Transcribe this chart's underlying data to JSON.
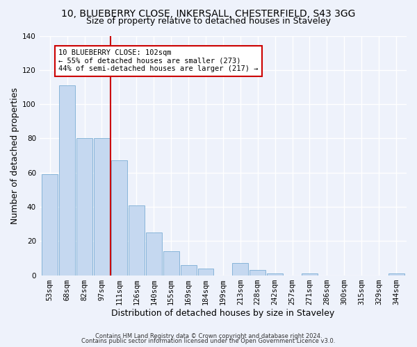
{
  "title1": "10, BLUEBERRY CLOSE, INKERSALL, CHESTERFIELD, S43 3GG",
  "title2": "Size of property relative to detached houses in Staveley",
  "xlabel": "Distribution of detached houses by size in Staveley",
  "ylabel": "Number of detached properties",
  "categories": [
    "53sqm",
    "68sqm",
    "82sqm",
    "97sqm",
    "111sqm",
    "126sqm",
    "140sqm",
    "155sqm",
    "169sqm",
    "184sqm",
    "199sqm",
    "213sqm",
    "228sqm",
    "242sqm",
    "257sqm",
    "271sqm",
    "286sqm",
    "300sqm",
    "315sqm",
    "329sqm",
    "344sqm"
  ],
  "values": [
    59,
    111,
    80,
    80,
    67,
    41,
    25,
    14,
    6,
    4,
    0,
    7,
    3,
    1,
    0,
    1,
    0,
    0,
    0,
    0,
    1
  ],
  "bar_color": "#c5d8f0",
  "bar_edge_color": "#7aadd4",
  "vline_x": 3.5,
  "vline_color": "#cc0000",
  "annotation_text": "10 BLUEBERRY CLOSE: 102sqm\n← 55% of detached houses are smaller (273)\n44% of semi-detached houses are larger (217) →",
  "annotation_box_facecolor": "#ffffff",
  "annotation_box_edgecolor": "#cc0000",
  "ylim": [
    0,
    140
  ],
  "yticks": [
    0,
    20,
    40,
    60,
    80,
    100,
    120,
    140
  ],
  "footnote1": "Contains HM Land Registry data © Crown copyright and database right 2024.",
  "footnote2": "Contains public sector information licensed under the Open Government Licence v3.0.",
  "bg_color": "#eef2fb",
  "grid_color": "#ffffff",
  "title1_fontsize": 10,
  "title2_fontsize": 9,
  "xlabel_fontsize": 9,
  "ylabel_fontsize": 9,
  "tick_fontsize": 7.5,
  "annot_fontsize": 7.5,
  "footnote_fontsize": 6
}
